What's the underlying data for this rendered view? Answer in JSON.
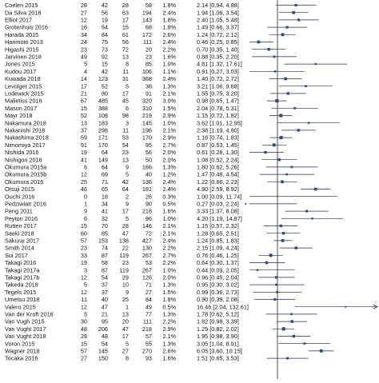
{
  "chart_data": {
    "type": "forest",
    "title": "",
    "xlabel": "",
    "ylabel": "",
    "x_scale": "log",
    "reference_line": 1,
    "columns": [
      "study",
      "events_group1",
      "total_group1",
      "events_group2",
      "total_group2",
      "weight",
      "effect_ci"
    ],
    "rows": [
      {
        "study": "Coelen 2015",
        "e1": "28",
        "n1": "42",
        "e2": "28",
        "n2": "58",
        "weight": "1.8%",
        "ci": "2.14 [0.94, 4.88]",
        "or": 2.14,
        "lo": 0.94,
        "hi": 4.88
      },
      {
        "study": "Da Silva 2018",
        "e1": "27",
        "n1": "56",
        "e2": "63",
        "n2": "194",
        "weight": "2.4%",
        "ci": "1.94 [1.06, 3.54]",
        "or": 1.94,
        "lo": 1.06,
        "hi": 3.54
      },
      {
        "study": "Elliot 2017",
        "e1": "12",
        "n1": "19",
        "e2": "17",
        "n2": "143",
        "weight": "1.8%",
        "ci": "2.40 [1.05, 5.48]",
        "or": 2.4,
        "lo": 1.05,
        "hi": 5.48
      },
      {
        "study": "Grotenhuis 2016",
        "e1": "16",
        "n1": "54",
        "e2": "15",
        "n2": "68",
        "weight": "1.8%",
        "ci": "1.49 [0.66, 3.37]",
        "or": 1.49,
        "lo": 0.66,
        "hi": 3.37
      },
      {
        "study": "Harada 2015",
        "e1": "34",
        "n1": "84",
        "e2": "61",
        "n2": "172",
        "weight": "2.6%",
        "ci": "1.24 [0.72, 2.12]",
        "or": 1.24,
        "lo": 0.72,
        "hi": 2.12
      },
      {
        "study": "Harimoto 2013",
        "e1": "24",
        "n1": "75",
        "e2": "56",
        "n2": "111",
        "weight": "2.4%",
        "ci": "0.46 [0.25, 0.85]",
        "or": 0.46,
        "lo": 0.25,
        "hi": 0.85
      },
      {
        "study": "Higashi 2015",
        "e1": "23",
        "n1": "73",
        "e2": "72",
        "n2": "20",
        "weight": "2.2%",
        "ci": "0.70 [0.35, 1.40]",
        "or": 0.7,
        "lo": 0.35,
        "hi": 1.4
      },
      {
        "study": "Jarvinen 2018",
        "e1": "49",
        "n1": "92",
        "e2": "13",
        "n2": "23",
        "weight": "1.6%",
        "ci": "0.88 [0.35, 2.20]",
        "or": 0.88,
        "lo": 0.35,
        "hi": 2.2
      },
      {
        "study": "Jones 2015",
        "e1": "5",
        "n1": "15",
        "e2": "8",
        "n2": "85",
        "weight": "1.0%",
        "ci": "4.81 [1.32, 17.61]",
        "or": 4.81,
        "lo": 1.32,
        "hi": 17.61
      },
      {
        "study": "Kudou 2017",
        "e1": "4",
        "n1": "42",
        "e2": "11",
        "n2": "106",
        "weight": "1.1%",
        "ci": "0.91 [0.27, 3.03]",
        "or": 0.91,
        "lo": 0.27,
        "hi": 3.03
      },
      {
        "study": "Kuwada 2018",
        "e1": "14",
        "n1": "123",
        "e2": "31",
        "n2": "368",
        "weight": "2.4%",
        "ci": "1.40 [0.72, 2.72]",
        "or": 1.4,
        "lo": 0.72,
        "hi": 2.72
      },
      {
        "study": "Levolger 2015",
        "e1": "17",
        "n1": "52",
        "e2": "5",
        "n2": "38",
        "weight": "1.3%",
        "ci": "3.21 [1.06, 9.68]",
        "or": 3.21,
        "lo": 1.06,
        "hi": 9.68
      },
      {
        "study": "Lodewick 2015",
        "e1": "21",
        "n1": "80",
        "e2": "17",
        "n2": "91",
        "weight": "2.1%",
        "ci": "1.55 [0.75, 3.20]",
        "or": 1.55,
        "lo": 0.75,
        "hi": 3.2
      },
      {
        "study": "Malietiss 2016",
        "e1": "67",
        "n1": "485",
        "e2": "45",
        "n2": "320",
        "weight": "3.0%",
        "ci": "0.98 [0.65, 1.47]",
        "or": 0.98,
        "lo": 0.65,
        "hi": 1.47
      },
      {
        "study": "Mason 2017",
        "e1": "15",
        "n1": "388",
        "e2": "6",
        "n2": "310",
        "weight": "1.5%",
        "ci": "2.04 [0.78, 5.31]",
        "or": 2.04,
        "lo": 0.78,
        "hi": 5.31
      },
      {
        "study": "Mayr 2018",
        "e1": "52",
        "n1": "108",
        "e2": "98",
        "n2": "219",
        "weight": "2.9%",
        "ci": "1.15 [0.72, 1.82]",
        "or": 1.15,
        "lo": 0.72,
        "hi": 1.82
      },
      {
        "study": "Nakamura 2018",
        "e1": "13",
        "n1": "183",
        "e2": "3",
        "n2": "145",
        "weight": "1.0%",
        "ci": "3.62 [1.01, 12.95]",
        "or": 3.62,
        "lo": 1.01,
        "hi": 12.95
      },
      {
        "study": "Nakanishi 2018",
        "e1": "37",
        "n1": "298",
        "e2": "11",
        "n2": "196",
        "weight": "2.1%",
        "ci": "2.38 [1.19, 4.80]",
        "or": 2.38,
        "lo": 1.19,
        "hi": 4.8
      },
      {
        "study": "Nakashima  2018",
        "e1": "59",
        "n1": "171",
        "e2": "53",
        "n2": "170",
        "weight": "2.9%",
        "ci": "1.16 [0.74, 1.83]",
        "or": 1.16,
        "lo": 0.74,
        "hi": 1.83
      },
      {
        "study": "Nimomiya 2017",
        "e1": "91",
        "n1": "170",
        "e2": "54",
        "n2": "95",
        "weight": "2.7%",
        "ci": "0.87 [0.53, 1.45]",
        "or": 0.87,
        "lo": 0.53,
        "hi": 1.45
      },
      {
        "study": "Nishida 2016",
        "e1": "19",
        "n1": "64",
        "e2": "23",
        "n2": "56",
        "weight": "2.0%",
        "ci": "0.61 [0.28, 1.30]",
        "or": 0.61,
        "lo": 0.28,
        "hi": 1.3
      },
      {
        "study": "Nishigori 2016",
        "e1": "41",
        "n1": "149",
        "e2": "13",
        "n2": "50",
        "weight": "2.0%",
        "ci": "1.08 [0.52, 2.24]",
        "or": 1.08,
        "lo": 0.52,
        "hi": 2.24
      },
      {
        "study": "Okumura 2015a",
        "e1": "6",
        "n1": "64",
        "e2": "9",
        "n2": "166",
        "weight": "1.3%",
        "ci": "1.80 [0.62, 5.26]",
        "or": 1.8,
        "lo": 0.62,
        "hi": 5.26
      },
      {
        "study": "Okumura 2015b",
        "e1": "12",
        "n1": "69",
        "e2": "5",
        "n2": "40",
        "weight": "1.2%",
        "ci": "1.47 [0.48, 4.54]",
        "or": 1.47,
        "lo": 0.48,
        "hi": 4.54
      },
      {
        "study": "Okumura 2016",
        "e1": "25",
        "n1": "71",
        "e2": "42",
        "n2": "136",
        "weight": "2.4%",
        "ci": "1.22 [0.66, 2.23]",
        "or": 1.22,
        "lo": 0.66,
        "hi": 2.23
      },
      {
        "study": "Otsuji 2015",
        "e1": "46",
        "n1": "65",
        "e2": "64",
        "n2": "191",
        "weight": "2.4%",
        "ci": "4.80 [2.59, 8.92]",
        "or": 4.8,
        "lo": 2.59,
        "hi": 8.92
      },
      {
        "study": "Ouchi 2016",
        "e1": "0",
        "n1": "18",
        "e2": "2",
        "n2": "26",
        "weight": "0.3%",
        "ci": "1.00 [0.09, 11.74]",
        "or": 1.0,
        "lo": 0.09,
        "hi": 11.74
      },
      {
        "study": "Pedziwiatr 2016",
        "e1": "1",
        "n1": "34",
        "e2": "9",
        "n2": "90",
        "weight": "0.5%",
        "ci": "0.27 [0.03, 2.24]",
        "or": 0.27,
        "lo": 0.03,
        "hi": 2.24
      },
      {
        "study": "Peng 2011",
        "e1": "9",
        "n1": "41",
        "e2": "17",
        "n2": "218",
        "weight": "1.6%",
        "ci": "3.33 [1.37, 8.08]",
        "or": 3.33,
        "lo": 1.37,
        "hi": 8.08
      },
      {
        "study": "Peyton 2016",
        "e1": "6",
        "n1": "32",
        "e2": "5",
        "n2": "96",
        "weight": "1.0%",
        "ci": "4.20 [1.19, 14.87]",
        "or": 4.2,
        "lo": 1.19,
        "hi": 14.87
      },
      {
        "study": "Rutten 2017",
        "e1": "15",
        "n1": "70",
        "e2": "28",
        "n2": "146",
        "weight": "2.1%",
        "ci": "1.15 [0.57, 2.32]",
        "or": 1.15,
        "lo": 0.57,
        "hi": 2.32
      },
      {
        "study": "Saeki 2018",
        "e1": "60",
        "n1": "85",
        "e2": "47",
        "n2": "72",
        "weight": "2.1%",
        "ci": "1.28 [0.65, 2.51]",
        "or": 1.28,
        "lo": 0.65,
        "hi": 2.51
      },
      {
        "study": "Sakurai 2017",
        "e1": "57",
        "n1": "153",
        "e2": "138",
        "n2": "427",
        "weight": "2.4%",
        "ci": "1.24 [0.85, 1.83]",
        "or": 1.24,
        "lo": 0.85,
        "hi": 1.83
      },
      {
        "study": "Smith 2014",
        "e1": "23",
        "n1": "74",
        "e2": "22",
        "n2": "130",
        "weight": "2.2%",
        "ci": "2.15 [1.09, 4.24]",
        "or": 2.15,
        "lo": 1.09,
        "hi": 4.24
      },
      {
        "study": "Sui 2017",
        "e1": "33",
        "n1": "87",
        "e2": "119",
        "n2": "267",
        "weight": "2.7%",
        "ci": "0.76 [0.46, 1.25]",
        "or": 0.76,
        "lo": 0.46,
        "hi": 1.25
      },
      {
        "study": "Takagi 2016",
        "e1": "19",
        "n1": "58",
        "e2": "23",
        "n2": "53",
        "weight": "2.2%",
        "ci": "0.64 [0.30, 1.37]",
        "or": 0.64,
        "lo": 0.3,
        "hi": 1.37
      },
      {
        "study": "Takagi 2017a",
        "e1": "3",
        "n1": "87",
        "e2": "119",
        "n2": "267",
        "weight": "1.0%",
        "ci": "0.44 [0.09, 2.05]",
        "or": 0.44,
        "lo": 0.09,
        "hi": 2.05
      },
      {
        "study": "Takagi 2017b",
        "e1": "12",
        "n1": "54",
        "e2": "29",
        "n2": "126",
        "weight": "2.0%",
        "ci": "0.96 [0.45, 2.04]",
        "or": 0.96,
        "lo": 0.45,
        "hi": 2.04
      },
      {
        "study": "Takeda 2018",
        "e1": "5",
        "n1": "37",
        "e2": "10",
        "n2": "71",
        "weight": "1.3%",
        "ci": "0.95 [0.30, 3.02]",
        "or": 0.95,
        "lo": 0.3,
        "hi": 3.02
      },
      {
        "study": "Tegels 2015",
        "e1": "12",
        "n1": "37",
        "e2": "9",
        "n2": "27",
        "weight": "1.5%",
        "ci": "0.99 [0.36, 2.73]",
        "or": 0.99,
        "lo": 0.36,
        "hi": 2.73
      },
      {
        "study": "Umetsu 2018",
        "e1": "11",
        "n1": "40",
        "e2": "25",
        "n2": "84",
        "weight": "1.8%",
        "ci": "0.90 [0.39, 2.08]",
        "or": 0.9,
        "lo": 0.39,
        "hi": 2.08
      },
      {
        "study": "Valero 2015",
        "e1": "12",
        "n1": "47",
        "e2": "1",
        "n2": "49",
        "weight": "0.5%",
        "ci": "16.46 [2.04, 132.61]",
        "or": 16.46,
        "lo": 2.04,
        "hi": 132.61
      },
      {
        "study": "Van der Kroft 2018",
        "e1": "5",
        "n1": "21",
        "e2": "13",
        "n2": "77",
        "weight": "1.3%",
        "ci": "1.78 [0.62, 5.12]",
        "or": 1.78,
        "lo": 0.62,
        "hi": 5.12
      },
      {
        "study": "Van Vugh 2015",
        "e1": "30",
        "n1": "95",
        "e2": "20",
        "n2": "111",
        "weight": "2.2%",
        "ci": "1.82 [0.98, 3.39]",
        "or": 1.82,
        "lo": 0.98,
        "hi": 3.39
      },
      {
        "study": "Van Vught 2017",
        "e1": "48",
        "n1": "206",
        "e2": "47",
        "n2": "218",
        "weight": "2.9%",
        "ci": "1.29 [0.82, 2.02]",
        "or": 1.29,
        "lo": 0.82,
        "hi": 2.02
      },
      {
        "study": "Van Vught 2018",
        "e1": "28",
        "n1": "48",
        "e2": "17",
        "n2": "57",
        "weight": "2.1%",
        "ci": "1.95 [0.98, 3.90]",
        "or": 1.95,
        "lo": 0.98,
        "hi": 3.9
      },
      {
        "study": "Voron 2015",
        "e1": "15",
        "n1": "54",
        "e2": "5",
        "n2": "55",
        "weight": "1.3%",
        "ci": "3.05 [1.04, 8.91]",
        "or": 3.05,
        "lo": 1.04,
        "hi": 8.91
      },
      {
        "study": "Wagner 2018",
        "e1": "57",
        "n1": "145",
        "e2": "27",
        "n2": "270",
        "weight": "2.6%",
        "ci": "6.05 [3.60, 10.15]",
        "or": 6.05,
        "lo": 3.6,
        "hi": 10.15
      },
      {
        "study": "Tocaka 2016",
        "e1": "27",
        "n1": "150",
        "e2": "8",
        "n2": "93",
        "weight": "1.6%",
        "ci": "1.51 [0.65, 3.53]",
        "or": 1.51,
        "lo": 0.65,
        "hi": 3.53
      }
    ]
  }
}
